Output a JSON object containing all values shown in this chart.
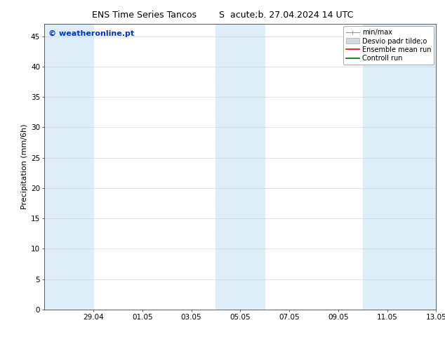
{
  "title_left": "ENS Time Series Tancos",
  "title_right": "S  acute;b. 27.04.2024 14 UTC",
  "ylabel": "Precipitation (mm/6h)",
  "watermark": "© weatheronline.pt",
  "ylim": [
    0,
    47
  ],
  "yticks": [
    0,
    5,
    10,
    15,
    20,
    25,
    30,
    35,
    40,
    45
  ],
  "bg_color": "#ffffff",
  "plot_bg_color": "#ffffff",
  "shaded_band_color": "#ddeef9",
  "x_tick_labels": [
    "29.04",
    "01.05",
    "03.05",
    "05.05",
    "07.05",
    "09.05",
    "11.05",
    "13.05"
  ],
  "x_tick_positions": [
    2,
    4,
    6,
    8,
    10,
    12,
    14,
    16
  ],
  "xlim": [
    0,
    16
  ],
  "bands": [
    {
      "xmin": 0.0,
      "xmax": 2.0
    },
    {
      "xmin": 7.0,
      "xmax": 9.0
    },
    {
      "xmin": 13.0,
      "xmax": 16.0
    }
  ],
  "legend_items": [
    "min/max",
    "Desvio padr tilde;o",
    "Ensemble mean run",
    "Controll run"
  ],
  "legend_colors_line": [
    "#aaaaaa",
    "#cccccc",
    "#ff0000",
    "#006600"
  ],
  "font_size_title": 9,
  "font_size_axis": 8,
  "font_size_ticks": 7.5,
  "font_size_legend": 7,
  "font_size_watermark": 8
}
